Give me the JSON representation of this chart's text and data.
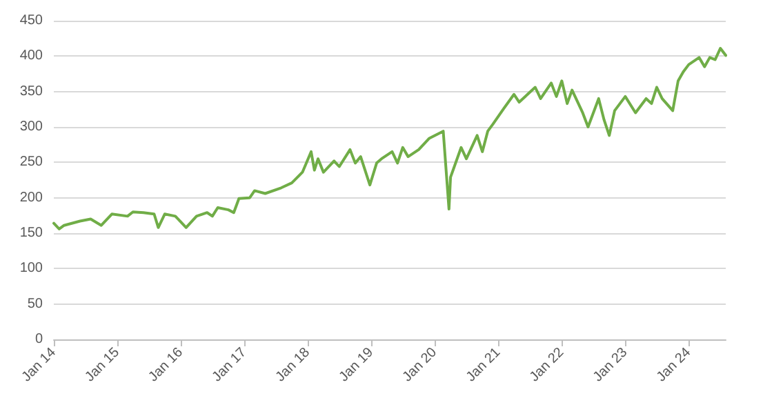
{
  "chart_data": {
    "type": "line",
    "x": [
      "2014-01",
      "2014-02",
      "2014-03",
      "2014-06",
      "2014-08",
      "2014-10",
      "2014-12",
      "2015-03",
      "2015-04",
      "2015-06",
      "2015-08",
      "2015-08-25",
      "2015-10",
      "2015-12",
      "2016-02",
      "2016-04",
      "2016-06",
      "2016-07",
      "2016-08",
      "2016-10",
      "2016-11",
      "2016-12",
      "2017-02",
      "2017-03",
      "2017-05",
      "2017-08",
      "2017-10",
      "2017-12",
      "2018-01-20",
      "2018-02-08",
      "2018-03",
      "2018-04",
      "2018-06",
      "2018-07",
      "2018-09",
      "2018-10",
      "2018-11",
      "2018-12-24",
      "2019-02",
      "2019-03",
      "2019-05",
      "2019-06",
      "2019-07",
      "2019-08",
      "2019-10",
      "2019-12",
      "2020-02-19",
      "2020-03-23",
      "2020-04",
      "2020-06",
      "2020-07",
      "2020-09",
      "2020-10",
      "2020-11",
      "2020-12",
      "2021-02",
      "2021-04",
      "2021-05",
      "2021-08",
      "2021-09",
      "2021-11",
      "2021-12",
      "2022-01",
      "2022-02",
      "2022-03",
      "2022-05",
      "2022-06",
      "2022-08",
      "2022-09",
      "2022-10",
      "2022-11",
      "2023-01",
      "2023-03",
      "2023-05",
      "2023-06",
      "2023-07",
      "2023-08",
      "2023-10",
      "2023-11",
      "2023-12",
      "2024-01",
      "2024-03",
      "2024-04",
      "2024-05",
      "2024-06",
      "2024-07",
      "2024-08"
    ],
    "series": [
      {
        "color": "#70ad47",
        "values": [
          164,
          156,
          161,
          167,
          170,
          161,
          177,
          174,
          180,
          179,
          177,
          158,
          177,
          174,
          158,
          174,
          179,
          174,
          186,
          183,
          179,
          199,
          200,
          210,
          206,
          214,
          221,
          236,
          265,
          239,
          255,
          236,
          252,
          244,
          268,
          249,
          258,
          218,
          249,
          255,
          265,
          249,
          271,
          258,
          268,
          284,
          294,
          184,
          229,
          271,
          255,
          288,
          265,
          294,
          304,
          326,
          346,
          335,
          356,
          340,
          362,
          343,
          365,
          333,
          352,
          320,
          300,
          340,
          310,
          288,
          323,
          343,
          320,
          340,
          333,
          356,
          340,
          323,
          365,
          378,
          388,
          398,
          385,
          398,
          395,
          411,
          401
        ]
      }
    ],
    "xlim": [
      "2014-01",
      "2024-08"
    ],
    "xticks": [
      {
        "value": "2014-01",
        "label": "Jan 14"
      },
      {
        "value": "2015-01",
        "label": "Jan 15"
      },
      {
        "value": "2016-01",
        "label": "Jan 16"
      },
      {
        "value": "2017-01",
        "label": "Jan 17"
      },
      {
        "value": "2018-01",
        "label": "Jan 18"
      },
      {
        "value": "2019-01",
        "label": "Jan 19"
      },
      {
        "value": "2020-01",
        "label": "Jan 20"
      },
      {
        "value": "2021-01",
        "label": "Jan 21"
      },
      {
        "value": "2022-01",
        "label": "Jan 22"
      },
      {
        "value": "2023-01",
        "label": "Jan 23"
      },
      {
        "value": "2024-01",
        "label": "Jan 24"
      }
    ],
    "ylim": [
      0,
      450
    ],
    "yticks": [
      0,
      50,
      100,
      150,
      200,
      250,
      300,
      350,
      400,
      450
    ],
    "grid": "y",
    "marker": "none",
    "line_style": "solid"
  }
}
